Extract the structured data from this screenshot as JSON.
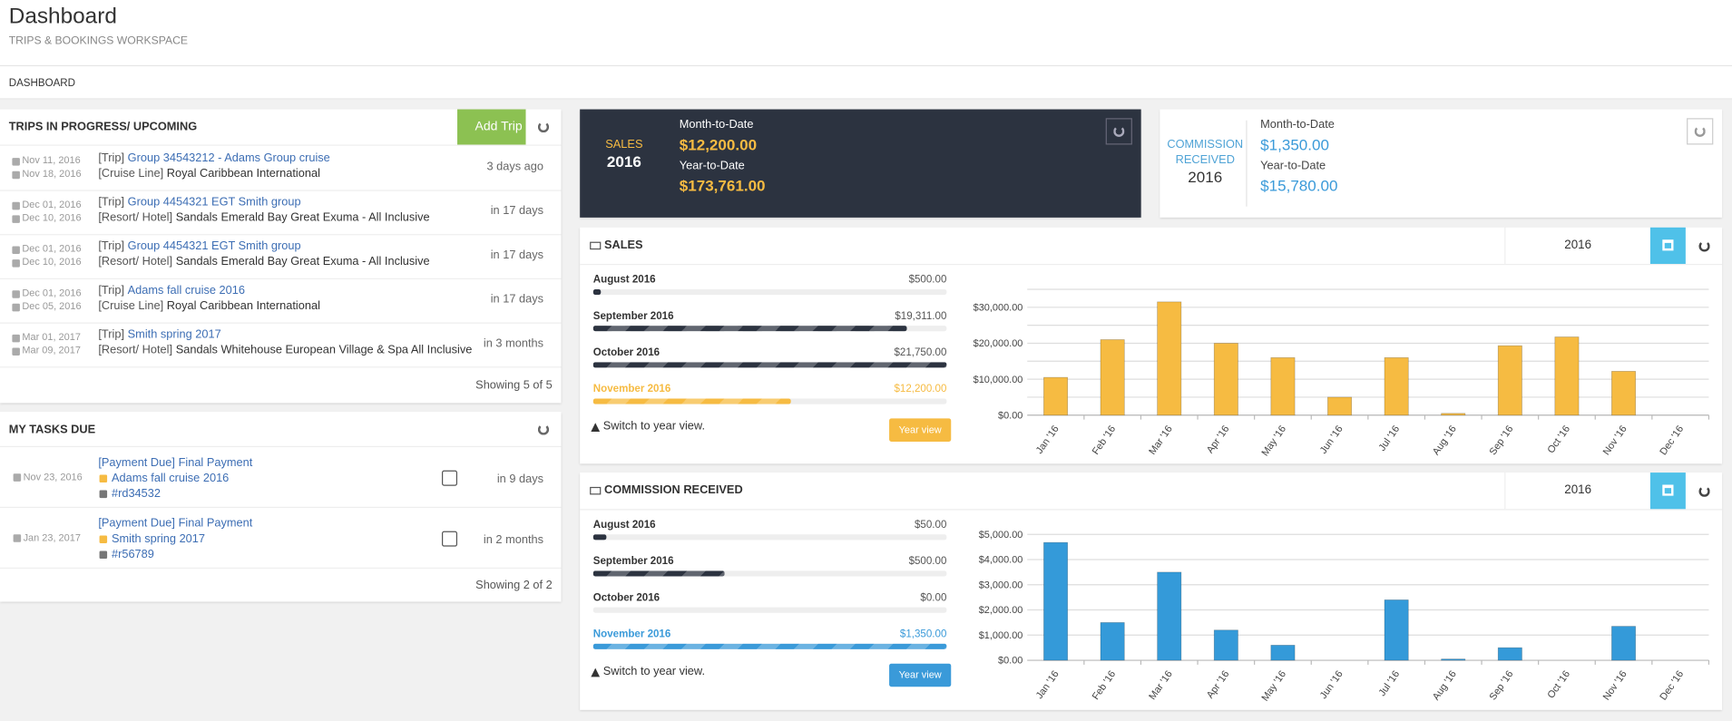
{
  "header": {
    "title": "Dashboard",
    "subtitle": "TRIPS & BOOKINGS WORKSPACE"
  },
  "breadcrumb": "DASHBOARD",
  "trips": {
    "title": "TRIPS IN PROGRESS/ UPCOMING",
    "add_button": "Add Trip",
    "rows": [
      {
        "start": "Nov 11, 2016",
        "end": "Nov 18, 2016",
        "kind": "[Trip]",
        "name": "Group 34543212 - Adams Group cruise",
        "sub_kind": "[Cruise Line]",
        "sub": "Royal Caribbean International",
        "when": "3 days ago"
      },
      {
        "start": "Dec 01, 2016",
        "end": "Dec 10, 2016",
        "kind": "[Trip]",
        "name": "Group 4454321 EGT Smith group",
        "sub_kind": "[Resort/ Hotel]",
        "sub": "Sandals Emerald Bay Great Exuma - All Inclusive",
        "when": "in 17 days"
      },
      {
        "start": "Dec 01, 2016",
        "end": "Dec 10, 2016",
        "kind": "[Trip]",
        "name": "Group 4454321 EGT Smith group",
        "sub_kind": "[Resort/ Hotel]",
        "sub": "Sandals Emerald Bay Great Exuma - All Inclusive",
        "when": "in 17 days"
      },
      {
        "start": "Dec 01, 2016",
        "end": "Dec 05, 2016",
        "kind": "[Trip]",
        "name": "Adams fall cruise 2016",
        "sub_kind": "[Cruise Line]",
        "sub": "Royal Caribbean International",
        "when": "in 17 days"
      },
      {
        "start": "Mar 01, 2017",
        "end": "Mar 09, 2017",
        "kind": "[Trip]",
        "name": "Smith spring 2017",
        "sub_kind": "[Resort/ Hotel]",
        "sub": "Sandals Whitehouse European Village & Spa All Inclusive",
        "when": "in 3 months"
      }
    ],
    "footer": "Showing 5 of 5"
  },
  "tasks": {
    "title": "MY TASKS DUE",
    "rows": [
      {
        "date": "Nov 23, 2016",
        "kind": "[Payment Due]",
        "name": "Final Payment",
        "trip": "Adams fall cruise 2016",
        "ref": "#rd34532",
        "when": "in 9 days"
      },
      {
        "date": "Jan 23, 2017",
        "kind": "[Payment Due]",
        "name": "Final Payment",
        "trip": "Smith spring 2017",
        "ref": "#r56789",
        "when": "in 2 months"
      }
    ],
    "footer": "Showing 2 of 2"
  },
  "sales_summary": {
    "label": "SALES",
    "year": "2016",
    "mtd_label": "Month-to-Date",
    "mtd": "$12,200.00",
    "ytd_label": "Year-to-Date",
    "ytd": "$173,761.00"
  },
  "commission_summary": {
    "label": "COMMISSION RECEIVED",
    "year": "2016",
    "mtd_label": "Month-to-Date",
    "mtd": "$1,350.00",
    "ytd_label": "Year-to-Date",
    "ytd": "$15,780.00"
  },
  "panels": [
    {
      "title": "SALES",
      "year": "2016",
      "months": [
        "August 2016",
        "September 2016",
        "October 2016",
        "November 2016"
      ],
      "values": [
        500,
        19311,
        21750,
        12200
      ],
      "value_labels": [
        "$500.00",
        "$19,311.00",
        "$21,750.00",
        "$12,200.00"
      ],
      "note": "Switch to year view.",
      "button": "Year view",
      "color": "#f6bb42"
    },
    {
      "title": "COMMISSION RECEIVED",
      "year": "2016",
      "months": [
        "August 2016",
        "September 2016",
        "October 2016",
        "November 2016"
      ],
      "values": [
        50,
        500,
        0,
        1350
      ],
      "value_labels": [
        "$50.00",
        "$500.00",
        "$0.00",
        "$1,350.00"
      ],
      "note": "Switch to year view.",
      "button": "Year view",
      "color": "#3a9ad9"
    }
  ],
  "chart_data": [
    {
      "type": "bar",
      "categories": [
        "Jan '16",
        "Feb '16",
        "Mar '16",
        "Apr '16",
        "May '16",
        "Jun '16",
        "Jul '16",
        "Aug '16",
        "Sep '16",
        "Oct '16",
        "Nov '16",
        "Dec '16"
      ],
      "values": [
        10500,
        21000,
        31500,
        20000,
        16000,
        5000,
        16000,
        500,
        19311,
        21750,
        12200,
        0
      ],
      "color": "#f6bb42",
      "ylim": [
        0,
        35000
      ],
      "yticks": [
        {
          "value": 0,
          "label": "$0.00"
        },
        {
          "value": 10000,
          "label": "$10,000.00"
        },
        {
          "value": 20000,
          "label": "$20,000.00"
        },
        {
          "value": 30000,
          "label": "$30,000.00"
        }
      ],
      "minor_yticks": [
        5000,
        15000,
        25000,
        35000
      ],
      "grid": true
    },
    {
      "type": "bar",
      "categories": [
        "Jan '16",
        "Feb '16",
        "Mar '16",
        "Apr '16",
        "May '16",
        "Jun '16",
        "Jul '16",
        "Aug '16",
        "Sep '16",
        "Oct '16",
        "Nov '16",
        "Dec '16"
      ],
      "values": [
        4680,
        1500,
        3500,
        1200,
        600,
        0,
        2400,
        50,
        500,
        0,
        1350,
        0
      ],
      "color": "#349ad9",
      "ylim": [
        0,
        5000
      ],
      "yticks": [
        {
          "value": 0,
          "label": "$0.00"
        },
        {
          "value": 1000,
          "label": "$1,000.00"
        },
        {
          "value": 2000,
          "label": "$2,000.00"
        },
        {
          "value": 3000,
          "label": "$3,000.00"
        },
        {
          "value": 4000,
          "label": "$4,000.00"
        },
        {
          "value": 5000,
          "label": "$5,000.00"
        }
      ],
      "grid": true
    }
  ]
}
